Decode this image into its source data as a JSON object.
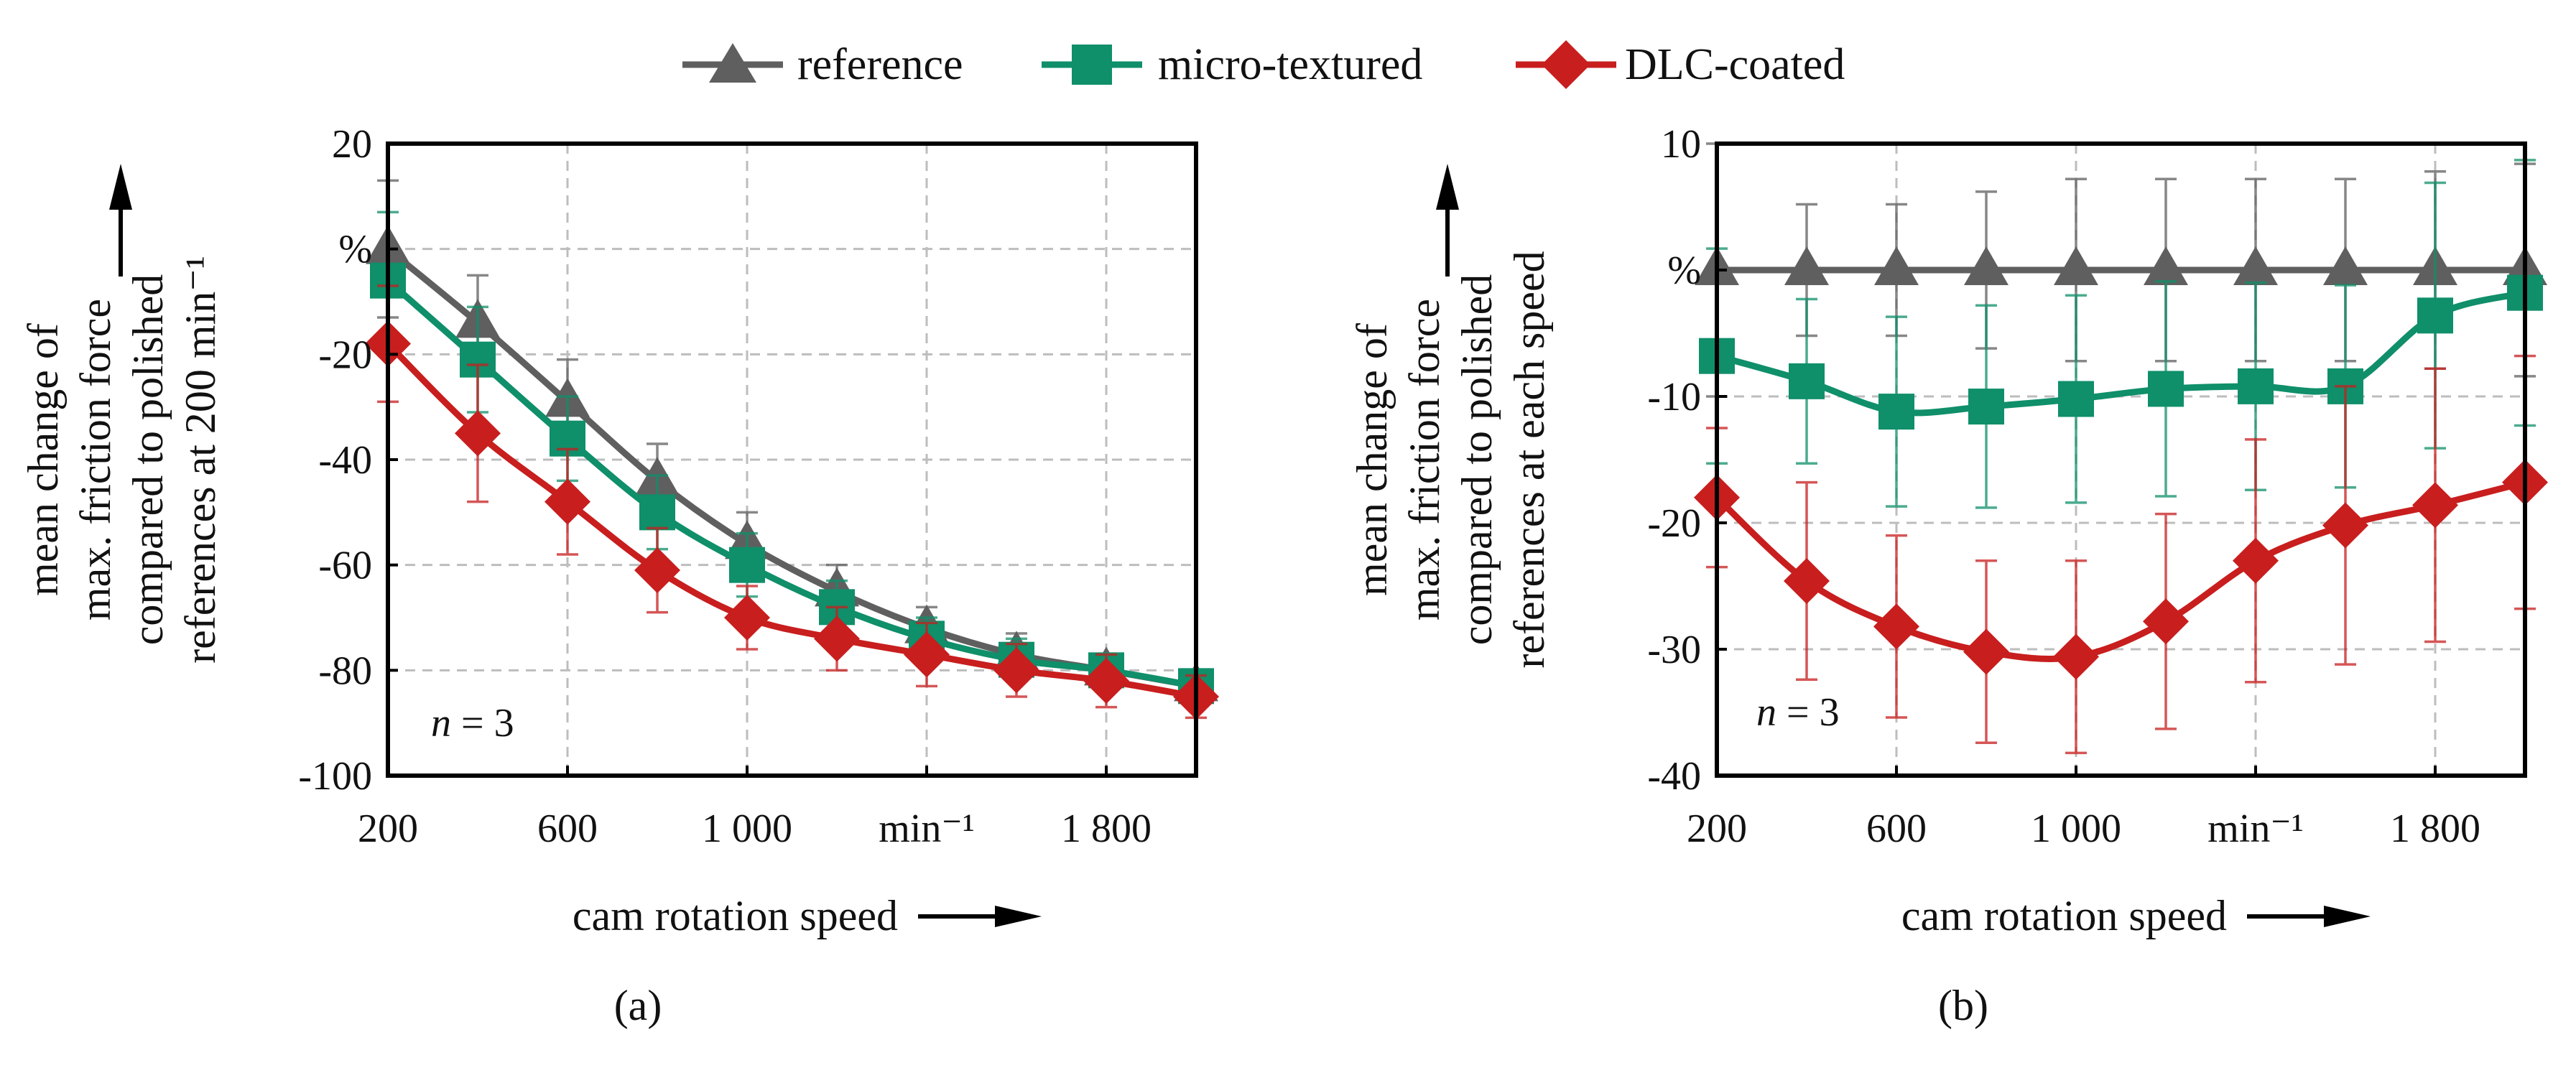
{
  "colors": {
    "reference": "#5f5f5f",
    "micro_textured": "#0f8f6a",
    "dlc_coated": "#c81e1e"
  },
  "legend": [
    {
      "key": "reference",
      "label": "reference",
      "marker": "triangle"
    },
    {
      "key": "micro_textured",
      "label": "micro-textured",
      "marker": "square"
    },
    {
      "key": "dlc_coated",
      "label": "DLC-coated",
      "marker": "diamond"
    }
  ],
  "chart_data": [
    {
      "type": "line",
      "panel_label": "(a)",
      "xlabel": "cam rotation speed",
      "ylabel": [
        "mean change of",
        "max. friction force",
        "compared to polished",
        "references at 200 min⁻¹"
      ],
      "y_unit_label": "%",
      "x_unit_label": "min⁻¹",
      "annotation": {
        "italic": "n",
        "rest": " = 3"
      },
      "x": [
        200,
        400,
        600,
        800,
        1000,
        1200,
        1400,
        1600,
        1800,
        2000
      ],
      "xlim": [
        200,
        2000
      ],
      "x_ticks": [
        {
          "value": 200,
          "label": "200"
        },
        {
          "value": 600,
          "label": "600"
        },
        {
          "value": 1000,
          "label": "1 000"
        },
        {
          "value": 1400,
          "label": "min⁻¹"
        },
        {
          "value": 1800,
          "label": "1 800"
        }
      ],
      "ylim": [
        -100,
        20
      ],
      "y_ticks": [
        {
          "value": 20,
          "label": "20"
        },
        {
          "value": 0,
          "label": "%"
        },
        {
          "value": -20,
          "label": "-20"
        },
        {
          "value": -40,
          "label": "-40"
        },
        {
          "value": -60,
          "label": "-60"
        },
        {
          "value": -80,
          "label": "-80"
        },
        {
          "value": -100,
          "label": "-100"
        }
      ],
      "series": [
        {
          "key": "reference",
          "name": "reference",
          "marker": "triangle",
          "values": [
            0,
            -14,
            -29,
            -44,
            -56,
            -65,
            -72,
            -77,
            -80,
            -83
          ],
          "errors": [
            13,
            9,
            8,
            7,
            6,
            5,
            4,
            4,
            3,
            3
          ]
        },
        {
          "key": "micro_textured",
          "name": "micro-textured",
          "marker": "square",
          "values": [
            -6,
            -21,
            -36,
            -50,
            -60,
            -68,
            -74,
            -78,
            -80,
            -83
          ],
          "errors": [
            13,
            10,
            8,
            7,
            6,
            5,
            4,
            4,
            3,
            3
          ]
        },
        {
          "key": "dlc_coated",
          "name": "DLC-coated",
          "marker": "diamond",
          "values": [
            -18,
            -35,
            -48,
            -61,
            -70,
            -74,
            -77,
            -80,
            -82,
            -85
          ],
          "errors": [
            11,
            13,
            10,
            8,
            6,
            6,
            6,
            5,
            5,
            4
          ]
        }
      ]
    },
    {
      "type": "line",
      "panel_label": "(b)",
      "xlabel": "cam rotation speed",
      "ylabel": [
        "mean change of",
        "max. friction force",
        "compared to polished",
        "references at each speed"
      ],
      "y_unit_label": "%",
      "x_unit_label": "min⁻¹",
      "annotation": {
        "italic": "n",
        "rest": " = 3"
      },
      "x": [
        200,
        400,
        600,
        800,
        1000,
        1200,
        1400,
        1600,
        1800,
        2000
      ],
      "xlim": [
        200,
        2000
      ],
      "x_ticks": [
        {
          "value": 200,
          "label": "200"
        },
        {
          "value": 600,
          "label": "600"
        },
        {
          "value": 1000,
          "label": "1 000"
        },
        {
          "value": 1400,
          "label": "min⁻¹"
        },
        {
          "value": 1800,
          "label": "1 800"
        }
      ],
      "ylim": [
        -40,
        10
      ],
      "y_ticks": [
        {
          "value": 10,
          "label": "10"
        },
        {
          "value": 0,
          "label": "%"
        },
        {
          "value": -10,
          "label": "-10"
        },
        {
          "value": -20,
          "label": "-20"
        },
        {
          "value": -30,
          "label": "-30"
        },
        {
          "value": -40,
          "label": "-40"
        }
      ],
      "series": [
        {
          "key": "reference",
          "name": "reference",
          "marker": "triangle",
          "values": [
            0,
            0,
            0,
            0,
            0,
            0,
            0,
            0,
            0,
            0
          ],
          "errors": [
            10,
            5.2,
            5.2,
            6.2,
            7.2,
            7.2,
            7.2,
            7.2,
            7.8,
            8.4
          ]
        },
        {
          "key": "micro_textured",
          "name": "micro-textured",
          "marker": "square",
          "values": [
            -6.8,
            -8.8,
            -11.2,
            -10.8,
            -10.2,
            -9.4,
            -9.2,
            -9.2,
            -3.6,
            -1.8
          ],
          "errors": [
            8.5,
            6.5,
            7.5,
            8,
            8.2,
            8.5,
            8.2,
            8,
            10.5,
            10.5
          ]
        },
        {
          "key": "dlc_coated",
          "name": "DLC-coated",
          "marker": "diamond",
          "values": [
            -18,
            -24.6,
            -28.2,
            -30.2,
            -30.6,
            -27.8,
            -23,
            -20.2,
            -18.6,
            -16.8
          ],
          "errors": [
            5.5,
            7.8,
            7.2,
            7.2,
            7.6,
            8.5,
            9.6,
            11,
            10.8,
            10
          ]
        }
      ]
    }
  ]
}
